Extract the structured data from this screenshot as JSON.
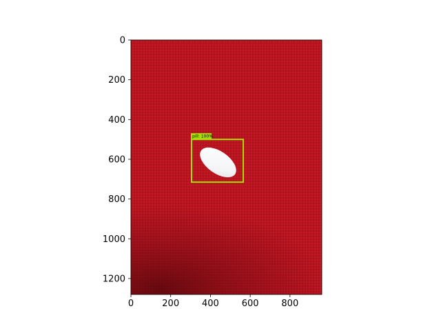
{
  "image": {
    "width": 960,
    "height": 1280,
    "description_colors": {
      "fabric": "#b8141f",
      "fabric_dark": "#7e0b14",
      "pill": "#ffffff",
      "box": "#a7e000"
    }
  },
  "axes": {
    "xlim": [
      0,
      960
    ],
    "ylim": [
      1280,
      0
    ],
    "xticks": [
      "0",
      "200",
      "400",
      "600",
      "800"
    ],
    "yticks": [
      "0",
      "200",
      "400",
      "600",
      "800",
      "1000",
      "1200"
    ]
  },
  "detections": [
    {
      "label": "pill: 100%",
      "x0": 305,
      "y0": 500,
      "x1": 565,
      "y1": 715,
      "color": "#a7e000"
    }
  ]
}
